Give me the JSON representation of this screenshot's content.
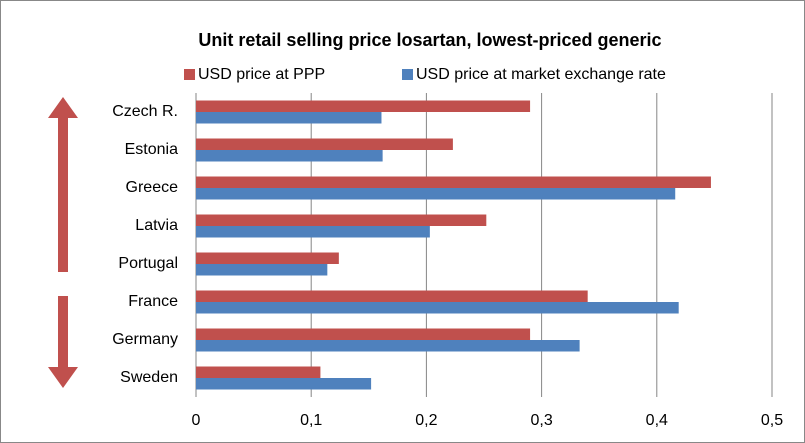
{
  "chart_data": {
    "type": "bar",
    "orientation": "horizontal",
    "title": "Unit retail selling price losartan, lowest-priced generic",
    "categories": [
      "Czech R.",
      "Estonia",
      "Greece",
      "Latvia",
      "Portugal",
      "France",
      "Germany",
      "Sweden"
    ],
    "series": [
      {
        "name": "USD price at PPP",
        "color": "#c0504d",
        "values": [
          0.29,
          0.223,
          0.447,
          0.252,
          0.124,
          0.34,
          0.29,
          0.108
        ]
      },
      {
        "name": "USD price at market exchange rate",
        "color": "#4f81bd",
        "values": [
          0.161,
          0.162,
          0.416,
          0.203,
          0.114,
          0.419,
          0.333,
          0.152
        ]
      }
    ],
    "xlim": [
      0,
      0.5
    ],
    "xticks": [
      0,
      {
        "value": 0.1,
        "label": "0,1"
      },
      {
        "value": 0.2,
        "label": "0,2"
      },
      {
        "value": 0.3,
        "label": "0,3"
      },
      {
        "value": 0.4,
        "label": "0,4"
      },
      {
        "value": 0.5,
        "label": "0,5"
      }
    ],
    "grid": true,
    "legend": "top"
  }
}
